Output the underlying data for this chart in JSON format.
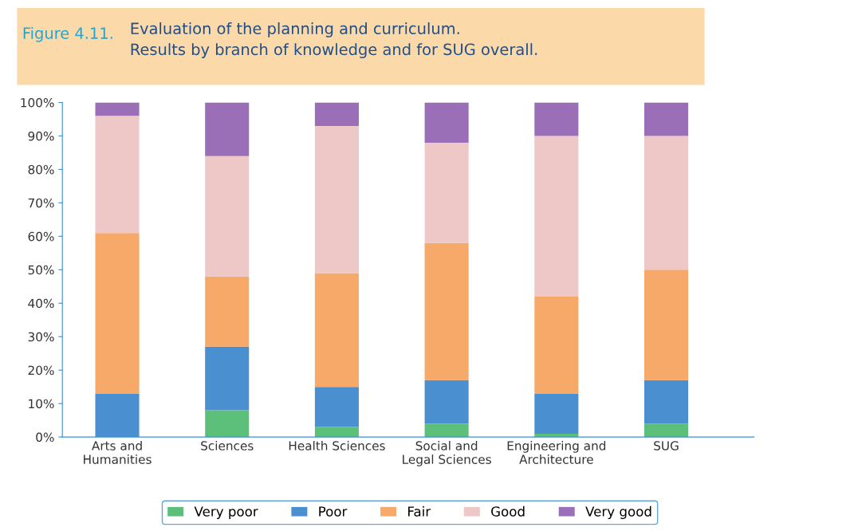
{
  "chart_data": {
    "type": "bar",
    "stacked": true,
    "title": "Figure 4.11.",
    "subtitle": "Evaluation of the planning and curriculum.\nResults by branch of knowledge and for SUG overall.",
    "categories": [
      "Arts and\nHumanities",
      "Sciences",
      "Health Sciences",
      "Social and\nLegal Sciences",
      "Engineering and\nArchitecture",
      "SUG"
    ],
    "series": [
      {
        "name": "Very poor",
        "color": "#5cc07a",
        "values": [
          0,
          8,
          3,
          4,
          1,
          4
        ]
      },
      {
        "name": "Poor",
        "color": "#4a90d0",
        "values": [
          13,
          19,
          12,
          13,
          12,
          13
        ]
      },
      {
        "name": "Fair",
        "color": "#f7a96a",
        "values": [
          48,
          21,
          34,
          41,
          29,
          33
        ]
      },
      {
        "name": "Good",
        "color": "#eec7c7",
        "values": [
          35,
          36,
          44,
          30,
          48,
          40
        ]
      },
      {
        "name": "Very good",
        "color": "#9a6fb8",
        "values": [
          4,
          16,
          7,
          12,
          10,
          10
        ]
      }
    ],
    "ylim": [
      0,
      100
    ],
    "yticks": [
      {
        "value": 0,
        "label": "0%"
      },
      {
        "value": 10,
        "label": "10%"
      },
      {
        "value": 20,
        "label": "20%"
      },
      {
        "value": 30,
        "label": "30%"
      },
      {
        "value": 40,
        "label": "40%"
      },
      {
        "value": 50,
        "label": "50%"
      },
      {
        "value": 60,
        "label": "60%"
      },
      {
        "value": 70,
        "label": "70%"
      },
      {
        "value": 80,
        "label": "80%"
      },
      {
        "value": 90,
        "label": "90%"
      },
      {
        "value": 100,
        "label": "100%"
      }
    ],
    "grid": false,
    "legend": "bottom"
  }
}
